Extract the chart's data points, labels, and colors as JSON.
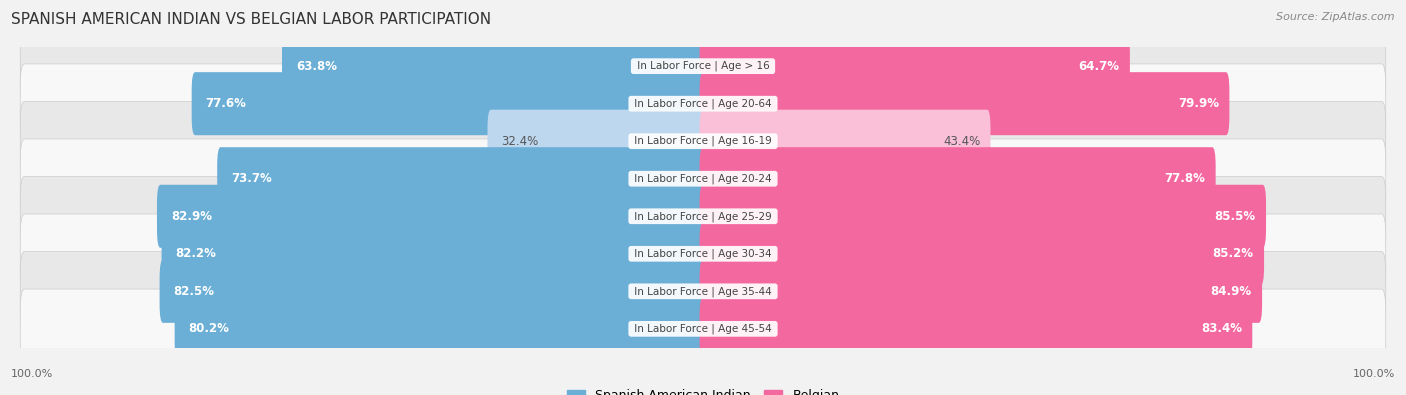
{
  "title": "SPANISH AMERICAN INDIAN VS BELGIAN LABOR PARTICIPATION",
  "source": "Source: ZipAtlas.com",
  "categories": [
    "In Labor Force | Age > 16",
    "In Labor Force | Age 20-64",
    "In Labor Force | Age 16-19",
    "In Labor Force | Age 20-24",
    "In Labor Force | Age 25-29",
    "In Labor Force | Age 30-34",
    "In Labor Force | Age 35-44",
    "In Labor Force | Age 45-54"
  ],
  "left_values": [
    63.8,
    77.6,
    32.4,
    73.7,
    82.9,
    82.2,
    82.5,
    80.2
  ],
  "right_values": [
    64.7,
    79.9,
    43.4,
    77.8,
    85.5,
    85.2,
    84.9,
    83.4
  ],
  "left_color": "#6baed6",
  "right_color": "#f468a0",
  "left_color_light": "#bdd7ee",
  "right_color_light": "#f9c0d8",
  "left_label": "Spanish American Indian",
  "right_label": "Belgian",
  "bg_color": "#f2f2f2",
  "row_bg_even": "#e8e8e8",
  "row_bg_odd": "#f8f8f8",
  "title_fontsize": 11,
  "source_fontsize": 8,
  "bar_fontsize": 8.5,
  "label_fontsize": 7.5,
  "axis_label": "100.0%"
}
